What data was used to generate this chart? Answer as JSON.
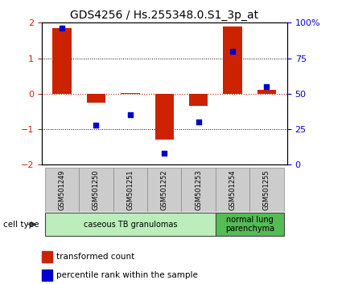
{
  "title": "GDS4256 / Hs.255348.0.S1_3p_at",
  "samples": [
    "GSM501249",
    "GSM501250",
    "GSM501251",
    "GSM501252",
    "GSM501253",
    "GSM501254",
    "GSM501255"
  ],
  "transformed_count": [
    1.85,
    -0.25,
    0.02,
    -1.3,
    -0.35,
    1.9,
    0.12
  ],
  "percentile_rank": [
    96,
    28,
    35,
    8,
    30,
    80,
    55
  ],
  "ylim": [
    -2,
    2
  ],
  "yticks_left": [
    -2,
    -1,
    0,
    1,
    2
  ],
  "yticks_right": [
    0,
    25,
    50,
    75,
    100
  ],
  "bar_color": "#cc2200",
  "dot_color": "#0000cc",
  "groups": [
    {
      "label": "caseous TB granulomas",
      "samples": [
        0,
        1,
        2,
        3,
        4
      ],
      "color": "#bbeebb"
    },
    {
      "label": "normal lung\nparenchyma",
      "samples": [
        5,
        6
      ],
      "color": "#55bb55"
    }
  ],
  "legend_bar_label": "transformed count",
  "legend_dot_label": "percentile rank within the sample",
  "cell_type_label": "cell type",
  "background_color": "#ffffff",
  "title_fontsize": 10,
  "tick_fontsize": 8,
  "bar_width": 0.55
}
